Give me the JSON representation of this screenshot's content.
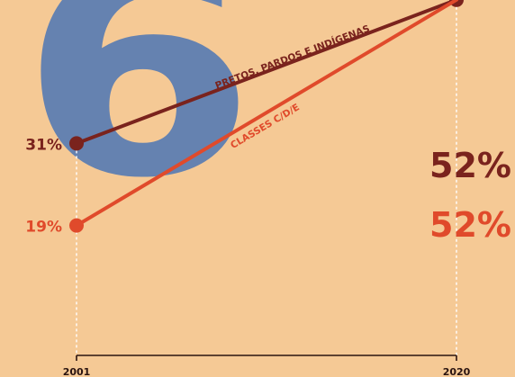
{
  "big_numeral": "6",
  "colors": {
    "background": "#f5c995",
    "numeral": "#6582b0",
    "series_1": "#7a231d",
    "series_2": "#e04a2b",
    "axis": "#2b1410",
    "guide": "#ffffff"
  },
  "chart_data": {
    "type": "line",
    "x": [
      2001,
      2020
    ],
    "tick_labels": [
      "2001",
      "2020"
    ],
    "ylim": [
      0,
      60
    ],
    "grid": false,
    "legend": "none",
    "series": [
      {
        "name": "PRETOS, PARDOS E INDÍGENAS",
        "values": [
          31,
          52
        ],
        "labels": [
          "31%",
          "52%"
        ],
        "color": "#7a231d"
      },
      {
        "name": "CLASSES C/D/E",
        "values": [
          19,
          52
        ],
        "labels": [
          "19%",
          "52%"
        ],
        "color": "#e04a2b"
      }
    ]
  }
}
